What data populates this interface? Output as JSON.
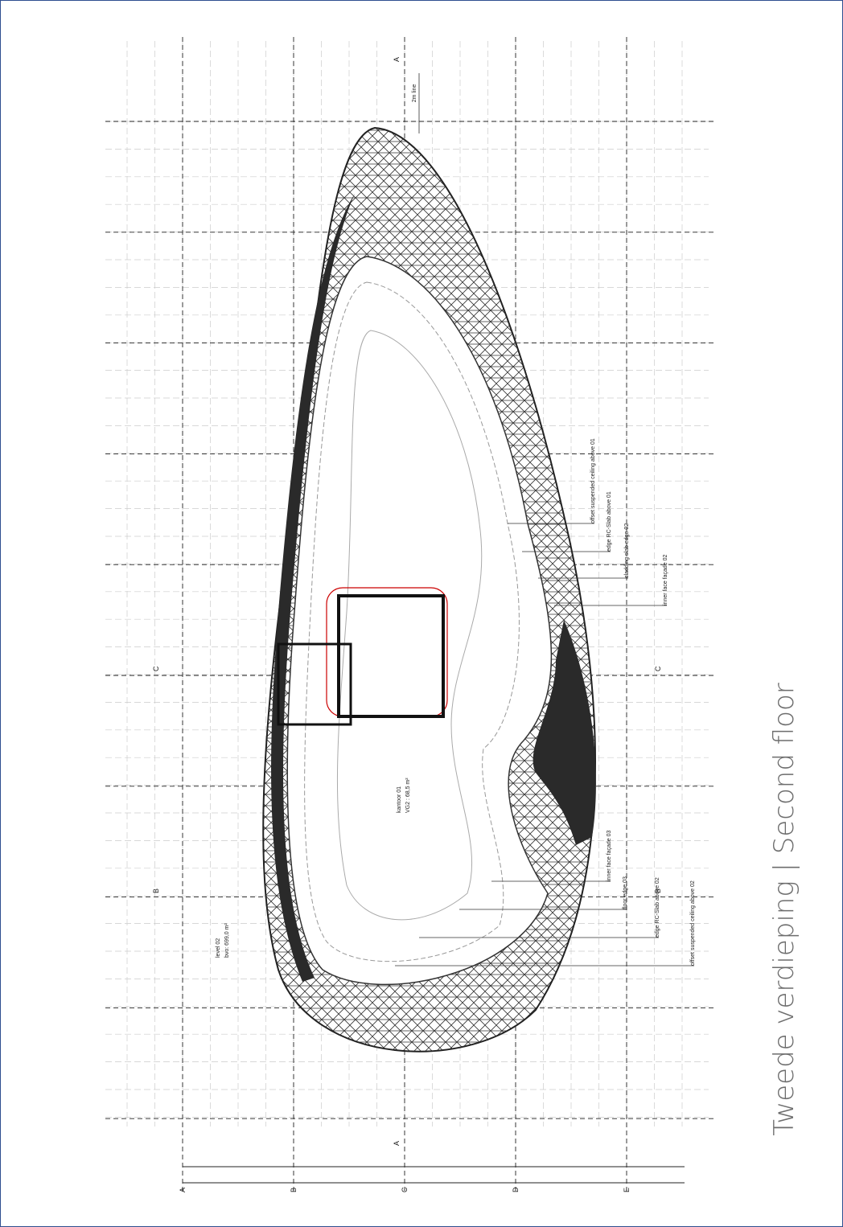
{
  "title": "Tweede verdieping | Second floor",
  "grid_labels": [
    "A",
    "B",
    "C",
    "D",
    "E"
  ],
  "section_markers": [
    "A",
    "A",
    "B",
    "B",
    "C",
    "C"
  ],
  "room": {
    "name": "kantoor 01",
    "area": "VG2 : 68,5 m²"
  },
  "level": {
    "name": "level 02",
    "area": "bvo: 699,0 m²"
  },
  "annotations": [
    "2m line",
    "offset suspended ceiling above 01",
    "edge RC-Slab above 01",
    "cladding slab edge 02",
    "inner face façade 02",
    "inner face façade 03",
    "floor edge 03",
    "edge RC-Slab above 02",
    "offset suspended ceiling above 02"
  ]
}
